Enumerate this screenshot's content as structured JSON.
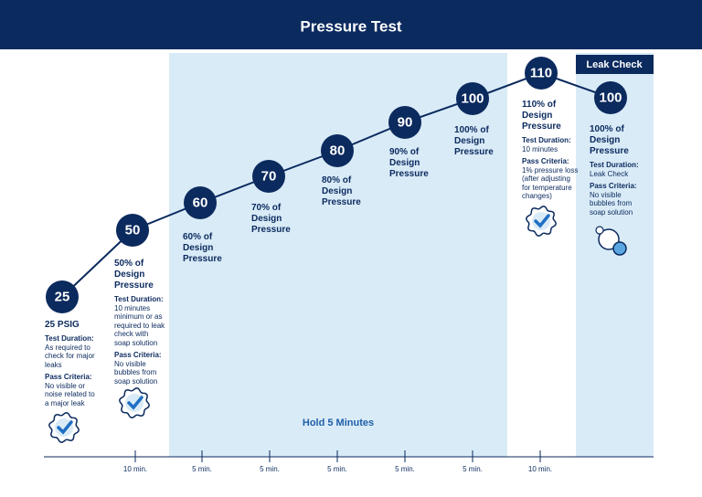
{
  "title": "Pressure Test",
  "hold_label": "Hold 5 Minutes",
  "leak_check_label": "Leak Check",
  "steps": [
    {
      "value": "25",
      "heading": "25 PSIG",
      "duration_label": "Test Duration:",
      "duration": "As required to check for major leaks",
      "criteria_label": "Pass Criteria:",
      "criteria": "No visible or noise related to a major leak"
    },
    {
      "value": "50",
      "heading": "50% of Design Pressure",
      "duration_label": "Test Duration:",
      "duration": "10 minutes minimum or as required to leak check with soap solution",
      "criteria_label": "Pass Criteria:",
      "criteria": "No visible bubbles from soap solution"
    },
    {
      "value": "60",
      "heading": "60% of Design Pressure"
    },
    {
      "value": "70",
      "heading": "70% of Design Pressure"
    },
    {
      "value": "80",
      "heading": "80% of Design Pressure"
    },
    {
      "value": "90",
      "heading": "90% of Design Pressure"
    },
    {
      "value": "100",
      "heading": "100% of Design Pressure"
    },
    {
      "value": "110",
      "heading": "110% of Design Pressure",
      "duration_label": "Test Duration:",
      "duration": "10 minutes",
      "criteria_label": "Pass Criteria:",
      "criteria": "1% pressure loss (after adjusting for temperature changes)"
    },
    {
      "value": "100",
      "heading": "100% of Design Pressure",
      "duration_label": "Test Duration:",
      "duration": "Leak Check",
      "criteria_label": "Pass Criteria:",
      "criteria": "No visible bubbles from soap solution"
    }
  ],
  "intervals": [
    "10 min.",
    "5 min.",
    "5 min.",
    "5 min.",
    "5 min.",
    "5 min.",
    "10 min."
  ]
}
